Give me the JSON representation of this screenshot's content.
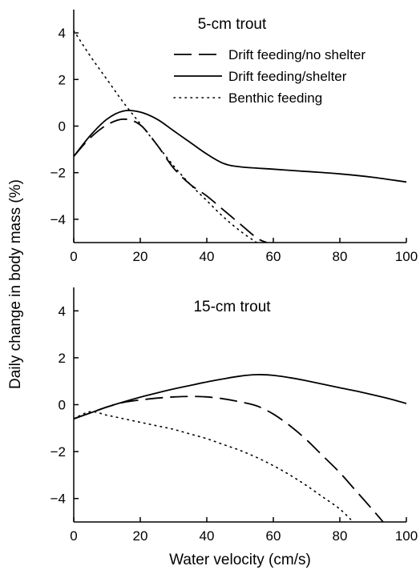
{
  "ylabel": "Daily change in body mass (%)",
  "chart_data": [
    {
      "type": "line",
      "title": "5-cm trout",
      "xlabel": "",
      "xlim": [
        0,
        100
      ],
      "ylim": [
        -5,
        5
      ],
      "xticks": [
        0,
        20,
        40,
        60,
        80,
        100
      ],
      "yticks": [
        4,
        2,
        0,
        -2,
        -4
      ],
      "xtick_labels": [
        "0",
        "20",
        "40",
        "60",
        "80",
        "100"
      ],
      "ytick_labels": [
        "4",
        "2",
        "0",
        "−2",
        "−4"
      ],
      "grid": false,
      "legend": "top-right",
      "series": [
        {
          "name": "Drift feeding/no shelter",
          "style": "dashed",
          "x": [
            0,
            5,
            10,
            15,
            20,
            25,
            30,
            35,
            40,
            45,
            50,
            55,
            58
          ],
          "y": [
            -1.3,
            -0.5,
            0.05,
            0.3,
            0.05,
            -0.8,
            -1.8,
            -2.5,
            -3.0,
            -3.6,
            -4.2,
            -4.8,
            -5.0
          ]
        },
        {
          "name": "Drift feeding/shelter",
          "style": "solid",
          "x": [
            0,
            5,
            10,
            15,
            20,
            25,
            30,
            35,
            40,
            45,
            50,
            60,
            70,
            80,
            90,
            100
          ],
          "y": [
            -1.3,
            -0.4,
            0.3,
            0.65,
            0.6,
            0.3,
            -0.2,
            -0.7,
            -1.2,
            -1.6,
            -1.75,
            -1.85,
            -1.95,
            -2.05,
            -2.2,
            -2.4
          ]
        },
        {
          "name": "Benthic feeding",
          "style": "dotted",
          "x": [
            0,
            5,
            10,
            15,
            20,
            25,
            30,
            35,
            40,
            45,
            50,
            55
          ],
          "y": [
            4.1,
            3.0,
            2.0,
            1.0,
            0.1,
            -0.8,
            -1.7,
            -2.5,
            -3.2,
            -3.9,
            -4.5,
            -5.0
          ]
        }
      ]
    },
    {
      "type": "line",
      "title": "15-cm trout",
      "xlabel": "Water velocity (cm/s)",
      "xlim": [
        0,
        100
      ],
      "ylim": [
        -5,
        5
      ],
      "xticks": [
        0,
        20,
        40,
        60,
        80,
        100
      ],
      "yticks": [
        4,
        2,
        0,
        -2,
        -4
      ],
      "xtick_labels": [
        "0",
        "20",
        "40",
        "60",
        "80",
        "100"
      ],
      "ytick_labels": [
        "4",
        "2",
        "0",
        "−2",
        "−4"
      ],
      "grid": false,
      "series": [
        {
          "name": "Drift feeding/no shelter",
          "style": "dashed",
          "x": [
            0,
            5,
            10,
            15,
            20,
            25,
            30,
            35,
            40,
            45,
            50,
            55,
            60,
            65,
            70,
            75,
            80,
            85,
            90,
            93
          ],
          "y": [
            -0.6,
            -0.35,
            -0.1,
            0.1,
            0.2,
            0.28,
            0.33,
            0.35,
            0.33,
            0.25,
            0.12,
            -0.05,
            -0.4,
            -0.9,
            -1.5,
            -2.2,
            -2.9,
            -3.7,
            -4.5,
            -5.0
          ]
        },
        {
          "name": "Drift feeding/shelter",
          "style": "solid",
          "x": [
            0,
            5,
            10,
            15,
            20,
            25,
            30,
            35,
            40,
            45,
            50,
            55,
            60,
            65,
            70,
            75,
            80,
            85,
            90,
            95,
            100
          ],
          "y": [
            -0.6,
            -0.35,
            -0.1,
            0.12,
            0.32,
            0.5,
            0.67,
            0.82,
            0.97,
            1.1,
            1.22,
            1.28,
            1.25,
            1.15,
            1.02,
            0.87,
            0.72,
            0.58,
            0.42,
            0.25,
            0.05
          ]
        },
        {
          "name": "Benthic feeding",
          "style": "dotted",
          "x": [
            0,
            5,
            10,
            15,
            20,
            25,
            30,
            35,
            40,
            45,
            50,
            55,
            60,
            65,
            70,
            75,
            80,
            84
          ],
          "y": [
            -0.6,
            -0.3,
            -0.45,
            -0.6,
            -0.75,
            -0.9,
            -1.05,
            -1.25,
            -1.45,
            -1.7,
            -1.95,
            -2.25,
            -2.6,
            -3.0,
            -3.45,
            -3.95,
            -4.45,
            -5.0
          ]
        }
      ]
    }
  ]
}
